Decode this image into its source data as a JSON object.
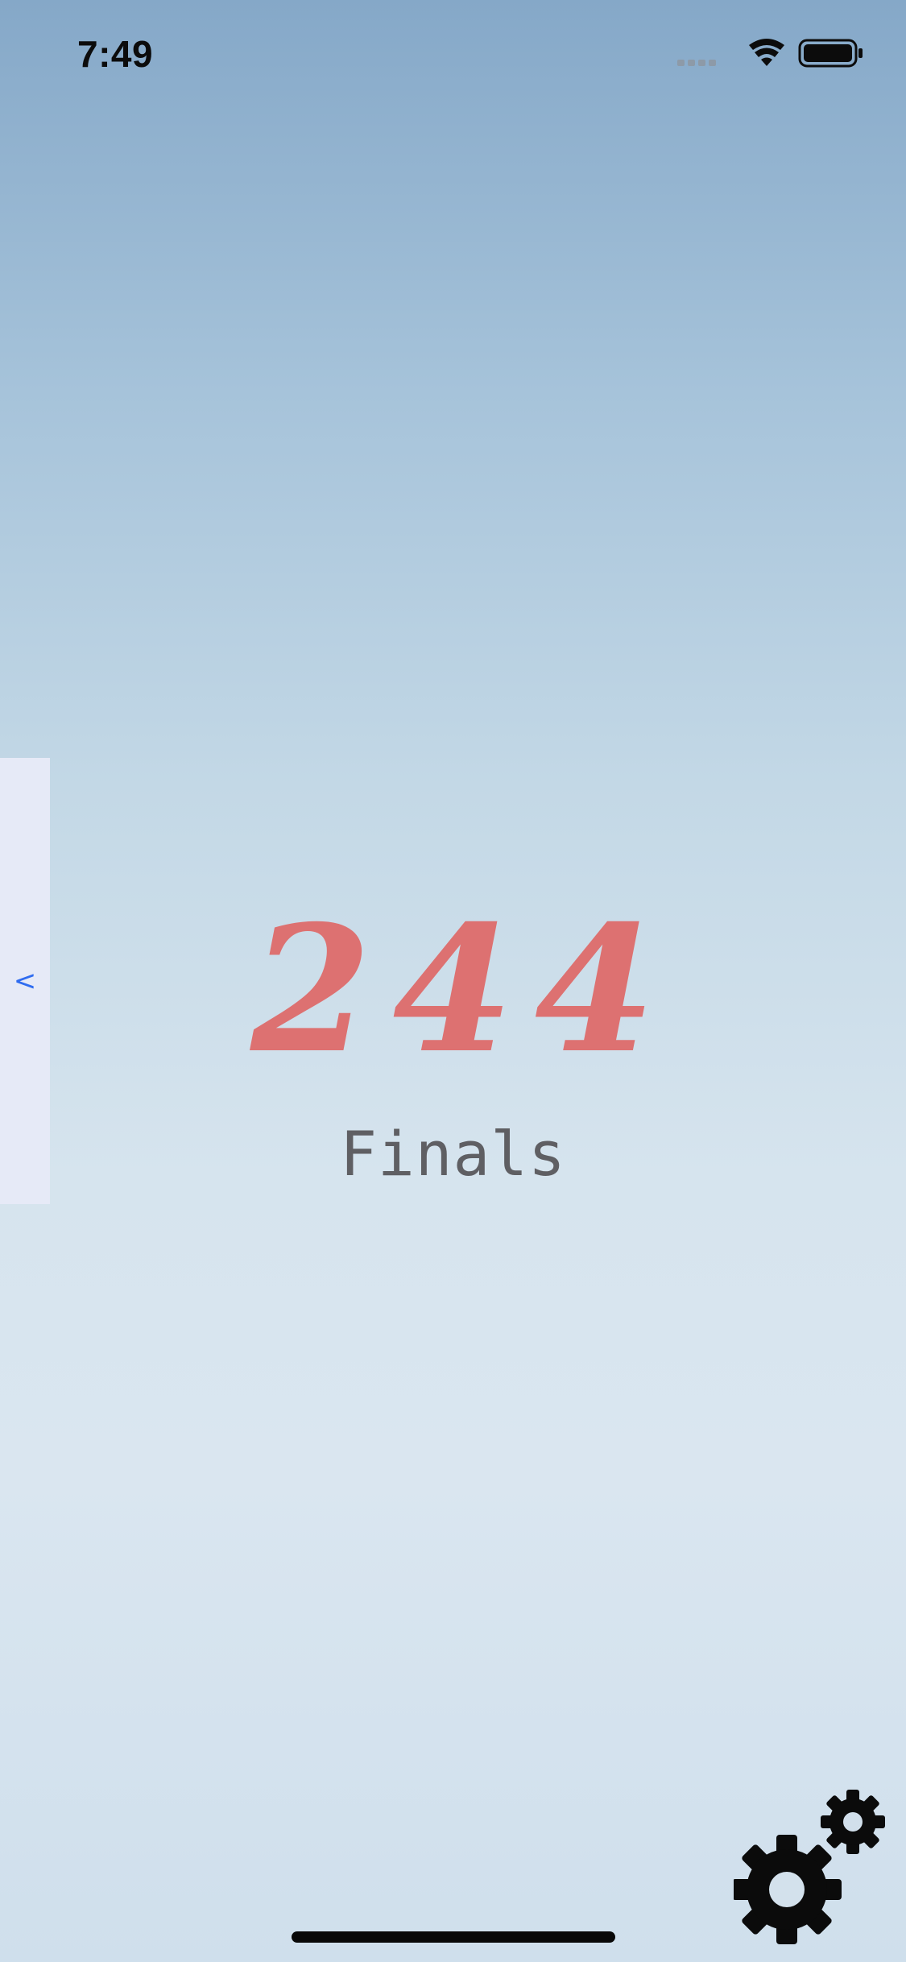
{
  "status_bar": {
    "time": "7:49",
    "icons": [
      "signal-icon",
      "wifi-icon",
      "battery-icon"
    ]
  },
  "drawer": {
    "toggle_label": "<"
  },
  "main": {
    "score": "244",
    "subtitle": "Finals"
  },
  "settings": {
    "icon": "gears-icon"
  },
  "colors": {
    "score": "#dd7171",
    "subtitle": "#5f5f63",
    "drawer_bg": "#e6eaf7",
    "drawer_arrow": "#2f6cf0",
    "background_top": "#85a8c8",
    "background_bottom": "#dae6f0"
  }
}
